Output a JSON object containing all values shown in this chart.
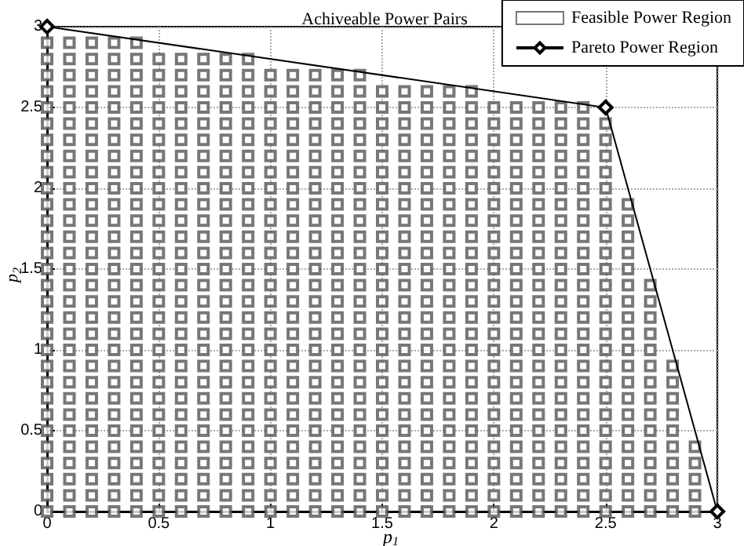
{
  "chart_data": {
    "type": "scatter",
    "title": "Achiveable Power Pairs",
    "xlabel": "p$_{1}$",
    "ylabel": "p$_{2}$",
    "xlim": [
      0,
      3
    ],
    "ylim": [
      0,
      3
    ],
    "xticks": [
      0,
      0.5,
      1,
      1.5,
      2,
      2.5,
      3
    ],
    "yticks": [
      0,
      0.5,
      1,
      1.5,
      2,
      2.5,
      3
    ],
    "grid": true,
    "legend": "top right",
    "series": [
      {
        "name": "Feasible Power Region",
        "marker": "square",
        "color": "#555555",
        "x": [
          0,
          0.1,
          0.2,
          0.3,
          0.4,
          0.5,
          0.6,
          0.7,
          0.8,
          0.9,
          1,
          1.1,
          1.2,
          1.3,
          1.4,
          1.5,
          1.6,
          1.7,
          1.8,
          1.9,
          2,
          2.1,
          2.2,
          2.3,
          2.4,
          2.5,
          2.6,
          2.7,
          2.8,
          2.9,
          0,
          0.1,
          0.2,
          0.3,
          0.4,
          0.5,
          0.6,
          0.7,
          0.8,
          0.9,
          1,
          1.1,
          1.2,
          1.3,
          1.4,
          1.5,
          1.6,
          1.7,
          1.8,
          1.9,
          2,
          2.1,
          2.2,
          2.3,
          2.4,
          2.5,
          2.6,
          2.7,
          2.8,
          2.9,
          0,
          0.1,
          0.2,
          0.3,
          0.4,
          0.5,
          0.6,
          0.7,
          0.8,
          0.9,
          1,
          1.1,
          1.2,
          1.3,
          1.4,
          1.5,
          1.6,
          1.7,
          1.8,
          1.9,
          2,
          2.1,
          2.2,
          2.3,
          2.4,
          2.5,
          2.6,
          2.7,
          2.8,
          2.9,
          0,
          0.1,
          0.2,
          0.3,
          0.4,
          0.5,
          0.6,
          0.7,
          0.8,
          0.9,
          1,
          1.1,
          1.2,
          1.3,
          1.4,
          1.5,
          1.6,
          1.7,
          1.8,
          1.9,
          2,
          2.1,
          2.2,
          2.3,
          2.4,
          2.5,
          2.6,
          2.7,
          2.8,
          2.9,
          0,
          0.1,
          0.2,
          0.3,
          0.4,
          0.5,
          0.6,
          0.7,
          0.8,
          0.9,
          1,
          1.1,
          1.2,
          1.3,
          1.4,
          1.5,
          1.6,
          1.7,
          1.8,
          1.9,
          2,
          2.1,
          2.2,
          2.3,
          2.4,
          2.5,
          2.6,
          2.7,
          2.8,
          2.9,
          0,
          0.1,
          0.2,
          0.3,
          0.4,
          0.5,
          0.6,
          0.7,
          0.8,
          0.9,
          1,
          1.1,
          1.2,
          1.3,
          1.4,
          1.5,
          1.6,
          1.7,
          1.8,
          1.9,
          2,
          2.1,
          2.2,
          2.3,
          2.4,
          2.5,
          2.6,
          2.7,
          2.8,
          0,
          0.1,
          0.2,
          0.3,
          0.4,
          0.5,
          0.6,
          0.7,
          0.8,
          0.9,
          1,
          1.1,
          1.2,
          1.3,
          1.4,
          1.5,
          1.6,
          1.7,
          1.8,
          1.9,
          2,
          2.1,
          2.2,
          2.3,
          2.4,
          2.5,
          2.6,
          2.7,
          2.8,
          0,
          0.1,
          0.2,
          0.3,
          0.4,
          0.5,
          0.6,
          0.7,
          0.8,
          0.9,
          1,
          1.1,
          1.2,
          1.3,
          1.4,
          1.5,
          1.6,
          1.7,
          1.8,
          1.9,
          2,
          2.1,
          2.2,
          2.3,
          2.4,
          2.5,
          2.6,
          2.7,
          2.8,
          0,
          0.1,
          0.2,
          0.3,
          0.4,
          0.5,
          0.6,
          0.7,
          0.8,
          0.9,
          1,
          1.1,
          1.2,
          1.3,
          1.4,
          1.5,
          1.6,
          1.7,
          1.8,
          1.9,
          2,
          2.1,
          2.2,
          2.3,
          2.4,
          2.5,
          2.6,
          2.7,
          2.8,
          0,
          0.1,
          0.2,
          0.3,
          0.4,
          0.5,
          0.6,
          0.7,
          0.8,
          0.9,
          1,
          1.1,
          1.2,
          1.3,
          1.4,
          1.5,
          1.6,
          1.7,
          1.8,
          1.9,
          2,
          2.1,
          2.2,
          2.3,
          2.4,
          2.5,
          2.6,
          2.7,
          2.8,
          0,
          0.1,
          0.2,
          0.3,
          0.4,
          0.5,
          0.6,
          0.7,
          0.8,
          0.9,
          1,
          1.1,
          1.2,
          1.3,
          1.4,
          1.5,
          1.6,
          1.7,
          1.8,
          1.9,
          2,
          2.1,
          2.2,
          2.3,
          2.4,
          2.5,
          2.6,
          2.7,
          0,
          0.1,
          0.2,
          0.3,
          0.4,
          0.5,
          0.6,
          0.7,
          0.8,
          0.9,
          1,
          1.1,
          1.2,
          1.3,
          1.4,
          1.5,
          1.6,
          1.7,
          1.8,
          1.9,
          2,
          2.1,
          2.2,
          2.3,
          2.4,
          2.5,
          2.6,
          2.7,
          0,
          0.1,
          0.2,
          0.3,
          0.4,
          0.5,
          0.6,
          0.7,
          0.8,
          0.9,
          1,
          1.1,
          1.2,
          1.3,
          1.4,
          1.5,
          1.6,
          1.7,
          1.8,
          1.9,
          2,
          2.1,
          2.2,
          2.3,
          2.4,
          2.5,
          2.6,
          2.7,
          0,
          0.1,
          0.2,
          0.3,
          0.4,
          0.5,
          0.6,
          0.7,
          0.8,
          0.9,
          1,
          1.1,
          1.2,
          1.3,
          1.4,
          1.5,
          1.6,
          1.7,
          1.8,
          1.9,
          2,
          2.1,
          2.2,
          2.3,
          2.4,
          2.5,
          2.6,
          2.7,
          0,
          0.1,
          0.2,
          0.3,
          0.4,
          0.5,
          0.6,
          0.7,
          0.8,
          0.9,
          1,
          1.1,
          1.2,
          1.3,
          1.4,
          1.5,
          1.6,
          1.7,
          1.8,
          1.9,
          2,
          2.1,
          2.2,
          2.3,
          2.4,
          2.5,
          2.6,
          2.7,
          0,
          0.1,
          0.2,
          0.3,
          0.4,
          0.5,
          0.6,
          0.7,
          0.8,
          0.9,
          1,
          1.1,
          1.2,
          1.3,
          1.4,
          1.5,
          1.6,
          1.7,
          1.8,
          1.9,
          2,
          2.1,
          2.2,
          2.3,
          2.4,
          2.5,
          2.6,
          0,
          0.1,
          0.2,
          0.3,
          0.4,
          0.5,
          0.6,
          0.7,
          0.8,
          0.9,
          1,
          1.1,
          1.2,
          1.3,
          1.4,
          1.5,
          1.6,
          1.7,
          1.8,
          1.9,
          2,
          2.1,
          2.2,
          2.3,
          2.4,
          2.5,
          2.6,
          0,
          0.1,
          0.2,
          0.3,
          0.4,
          0.5,
          0.6,
          0.7,
          0.8,
          0.9,
          1,
          1.1,
          1.2,
          1.3,
          1.4,
          1.5,
          1.6,
          1.7,
          1.8,
          1.9,
          2,
          2.1,
          2.2,
          2.3,
          2.4,
          2.5,
          2.6,
          0,
          0.1,
          0.2,
          0.3,
          0.4,
          0.5,
          0.6,
          0.7,
          0.8,
          0.9,
          1,
          1.1,
          1.2,
          1.3,
          1.4,
          1.5,
          1.6,
          1.7,
          1.8,
          1.9,
          2,
          2.1,
          2.2,
          2.3,
          2.4,
          2.5,
          2.6,
          0,
          0.1,
          0.2,
          0.3,
          0.4,
          0.5,
          0.6,
          0.7,
          0.8,
          0.9,
          1,
          1.1,
          1.2,
          1.3,
          1.4,
          1.5,
          1.6,
          1.7,
          1.8,
          1.9,
          2,
          2.1,
          2.2,
          2.3,
          2.4,
          2.5,
          2.6,
          0,
          0.1,
          0.2,
          0.3,
          0.4,
          0.5,
          0.6,
          0.7,
          0.8,
          0.9,
          1,
          1.1,
          1.2,
          1.3,
          1.4,
          1.5,
          1.6,
          1.7,
          1.8,
          1.9,
          2,
          2.1,
          2.2,
          2.3,
          2.4,
          2.5,
          0,
          0.1,
          0.2,
          0.3,
          0.4,
          0.5,
          0.6,
          0.7,
          0.8,
          0.9,
          1,
          1.1,
          1.2,
          1.3,
          1.4,
          1.5,
          1.6,
          1.7,
          1.8,
          1.9,
          2,
          2.1,
          2.2,
          2.3,
          2.4,
          2.5,
          0,
          0.1,
          0.2,
          0.3,
          0.4,
          0.5,
          0.6,
          0.7,
          0.8,
          0.9,
          1,
          1.1,
          1.2,
          1.3,
          1.4,
          1.5,
          1.6,
          1.7,
          1.8,
          1.9,
          2,
          2.1,
          2.2,
          2.3,
          2.4,
          2.5,
          0,
          0.1,
          0.2,
          0.3,
          0.4,
          0.5,
          0.6,
          0.7,
          0.8,
          0.9,
          1,
          1.1,
          1.2,
          1.3,
          1.4,
          1.5,
          1.6,
          1.7,
          1.8,
          1.9,
          2,
          2.1,
          2.2,
          2.3,
          2.4,
          2.5,
          0,
          0.1,
          0.2,
          0.3,
          0.4,
          0.5,
          0.6,
          0.7,
          0.8,
          0.9,
          1,
          1.1,
          1.2,
          1.3,
          1.4,
          1.5,
          1.6,
          1.7,
          1.8,
          1.9,
          2,
          2.1,
          2.2,
          2.3,
          2.4,
          2.5,
          0,
          0.1,
          0.2,
          0.3,
          0.4,
          0.5,
          0.6,
          0.7,
          0.8,
          0.9,
          1,
          1.1,
          1.2,
          1.3,
          1.4,
          1.5,
          1.6,
          1.7,
          1.8,
          1.9,
          2,
          2.1,
          2.2,
          2.3,
          2.4,
          0,
          0.1,
          0.2,
          0.3,
          0.4,
          0.5,
          0.6,
          0.7,
          0.8,
          0.9,
          1,
          1.1,
          1.2,
          1.3,
          1.4,
          1.5,
          1.6,
          1.7,
          1.8,
          1.9,
          0,
          0.1,
          0.2,
          0.3,
          0.4,
          0.5,
          0.6,
          0.7,
          0.8,
          0.9,
          1,
          1.1,
          1.2,
          1.3,
          1.4,
          0,
          0.1,
          0.2,
          0.3,
          0.4,
          0.5,
          0.6,
          0.7,
          0.8,
          0.9,
          0,
          0.1,
          0.2,
          0.3,
          0.4
        ],
        "values": [
          0,
          0,
          0,
          0,
          0,
          0,
          0,
          0,
          0,
          0,
          0,
          0,
          0,
          0,
          0,
          0,
          0,
          0,
          0,
          0,
          0,
          0,
          0,
          0,
          0,
          0,
          0,
          0,
          0,
          0,
          0.1,
          0.1,
          0.1,
          0.1,
          0.1,
          0.1,
          0.1,
          0.1,
          0.1,
          0.1,
          0.1,
          0.1,
          0.1,
          0.1,
          0.1,
          0.1,
          0.1,
          0.1,
          0.1,
          0.1,
          0.1,
          0.1,
          0.1,
          0.1,
          0.1,
          0.1,
          0.1,
          0.1,
          0.1,
          0.1,
          0.2,
          0.2,
          0.2,
          0.2,
          0.2,
          0.2,
          0.2,
          0.2,
          0.2,
          0.2,
          0.2,
          0.2,
          0.2,
          0.2,
          0.2,
          0.2,
          0.2,
          0.2,
          0.2,
          0.2,
          0.2,
          0.2,
          0.2,
          0.2,
          0.2,
          0.2,
          0.2,
          0.2,
          0.2,
          0.2,
          0.3,
          0.3,
          0.3,
          0.3,
          0.3,
          0.3,
          0.3,
          0.3,
          0.3,
          0.3,
          0.3,
          0.3,
          0.3,
          0.3,
          0.3,
          0.3,
          0.3,
          0.3,
          0.3,
          0.3,
          0.3,
          0.3,
          0.3,
          0.3,
          0.3,
          0.3,
          0.3,
          0.3,
          0.3,
          0.3,
          0.4,
          0.4,
          0.4,
          0.4,
          0.4,
          0.4,
          0.4,
          0.4,
          0.4,
          0.4,
          0.4,
          0.4,
          0.4,
          0.4,
          0.4,
          0.4,
          0.4,
          0.4,
          0.4,
          0.4,
          0.4,
          0.4,
          0.4,
          0.4,
          0.4,
          0.4,
          0.4,
          0.4,
          0.4,
          0.4,
          0.5,
          0.5,
          0.5,
          0.5,
          0.5,
          0.5,
          0.5,
          0.5,
          0.5,
          0.5,
          0.5,
          0.5,
          0.5,
          0.5,
          0.5,
          0.5,
          0.5,
          0.5,
          0.5,
          0.5,
          0.5,
          0.5,
          0.5,
          0.5,
          0.5,
          0.5,
          0.5,
          0.5,
          0.5,
          0.6,
          0.6,
          0.6,
          0.6,
          0.6,
          0.6,
          0.6,
          0.6,
          0.6,
          0.6,
          0.6,
          0.6,
          0.6,
          0.6,
          0.6,
          0.6,
          0.6,
          0.6,
          0.6,
          0.6,
          0.6,
          0.6,
          0.6,
          0.6,
          0.6,
          0.6,
          0.6,
          0.6,
          0.6,
          0.7,
          0.7,
          0.7,
          0.7,
          0.7,
          0.7,
          0.7,
          0.7,
          0.7,
          0.7,
          0.7,
          0.7,
          0.7,
          0.7,
          0.7,
          0.7,
          0.7,
          0.7,
          0.7,
          0.7,
          0.7,
          0.7,
          0.7,
          0.7,
          0.7,
          0.7,
          0.7,
          0.7,
          0.7,
          0.8,
          0.8,
          0.8,
          0.8,
          0.8,
          0.8,
          0.8,
          0.8,
          0.8,
          0.8,
          0.8,
          0.8,
          0.8,
          0.8,
          0.8,
          0.8,
          0.8,
          0.8,
          0.8,
          0.8,
          0.8,
          0.8,
          0.8,
          0.8,
          0.8,
          0.8,
          0.8,
          0.8,
          0.8,
          0.9,
          0.9,
          0.9,
          0.9,
          0.9,
          0.9,
          0.9,
          0.9,
          0.9,
          0.9,
          0.9,
          0.9,
          0.9,
          0.9,
          0.9,
          0.9,
          0.9,
          0.9,
          0.9,
          0.9,
          0.9,
          0.9,
          0.9,
          0.9,
          0.9,
          0.9,
          0.9,
          0.9,
          0.9,
          1,
          1,
          1,
          1,
          1,
          1,
          1,
          1,
          1,
          1,
          1,
          1,
          1,
          1,
          1,
          1,
          1,
          1,
          1,
          1,
          1,
          1,
          1,
          1,
          1,
          1,
          1,
          1,
          1.1,
          1.1,
          1.1,
          1.1,
          1.1,
          1.1,
          1.1,
          1.1,
          1.1,
          1.1,
          1.1,
          1.1,
          1.1,
          1.1,
          1.1,
          1.1,
          1.1,
          1.1,
          1.1,
          1.1,
          1.1,
          1.1,
          1.1,
          1.1,
          1.1,
          1.1,
          1.1,
          1.1,
          1.2,
          1.2,
          1.2,
          1.2,
          1.2,
          1.2,
          1.2,
          1.2,
          1.2,
          1.2,
          1.2,
          1.2,
          1.2,
          1.2,
          1.2,
          1.2,
          1.2,
          1.2,
          1.2,
          1.2,
          1.2,
          1.2,
          1.2,
          1.2,
          1.2,
          1.2,
          1.2,
          1.2,
          1.3,
          1.3,
          1.3,
          1.3,
          1.3,
          1.3,
          1.3,
          1.3,
          1.3,
          1.3,
          1.3,
          1.3,
          1.3,
          1.3,
          1.3,
          1.3,
          1.3,
          1.3,
          1.3,
          1.3,
          1.3,
          1.3,
          1.3,
          1.3,
          1.3,
          1.3,
          1.3,
          1.3,
          1.4,
          1.4,
          1.4,
          1.4,
          1.4,
          1.4,
          1.4,
          1.4,
          1.4,
          1.4,
          1.4,
          1.4,
          1.4,
          1.4,
          1.4,
          1.4,
          1.4,
          1.4,
          1.4,
          1.4,
          1.4,
          1.4,
          1.4,
          1.4,
          1.4,
          1.4,
          1.4,
          1.4,
          1.5,
          1.5,
          1.5,
          1.5,
          1.5,
          1.5,
          1.5,
          1.5,
          1.5,
          1.5,
          1.5,
          1.5,
          1.5,
          1.5,
          1.5,
          1.5,
          1.5,
          1.5,
          1.5,
          1.5,
          1.5,
          1.5,
          1.5,
          1.5,
          1.5,
          1.5,
          1.5,
          1.6,
          1.6,
          1.6,
          1.6,
          1.6,
          1.6,
          1.6,
          1.6,
          1.6,
          1.6,
          1.6,
          1.6,
          1.6,
          1.6,
          1.6,
          1.6,
          1.6,
          1.6,
          1.6,
          1.6,
          1.6,
          1.6,
          1.6,
          1.6,
          1.6,
          1.6,
          1.6,
          1.7,
          1.7,
          1.7,
          1.7,
          1.7,
          1.7,
          1.7,
          1.7,
          1.7,
          1.7,
          1.7,
          1.7,
          1.7,
          1.7,
          1.7,
          1.7,
          1.7,
          1.7,
          1.7,
          1.7,
          1.7,
          1.7,
          1.7,
          1.7,
          1.7,
          1.7,
          1.7,
          1.8,
          1.8,
          1.8,
          1.8,
          1.8,
          1.8,
          1.8,
          1.8,
          1.8,
          1.8,
          1.8,
          1.8,
          1.8,
          1.8,
          1.8,
          1.8,
          1.8,
          1.8,
          1.8,
          1.8,
          1.8,
          1.8,
          1.8,
          1.8,
          1.8,
          1.8,
          1.8,
          1.9,
          1.9,
          1.9,
          1.9,
          1.9,
          1.9,
          1.9,
          1.9,
          1.9,
          1.9,
          1.9,
          1.9,
          1.9,
          1.9,
          1.9,
          1.9,
          1.9,
          1.9,
          1.9,
          1.9,
          1.9,
          1.9,
          1.9,
          1.9,
          1.9,
          1.9,
          1.9,
          2,
          2,
          2,
          2,
          2,
          2,
          2,
          2,
          2,
          2,
          2,
          2,
          2,
          2,
          2,
          2,
          2,
          2,
          2,
          2,
          2,
          2,
          2,
          2,
          2,
          2,
          2.1,
          2.1,
          2.1,
          2.1,
          2.1,
          2.1,
          2.1,
          2.1,
          2.1,
          2.1,
          2.1,
          2.1,
          2.1,
          2.1,
          2.1,
          2.1,
          2.1,
          2.1,
          2.1,
          2.1,
          2.1,
          2.1,
          2.1,
          2.1,
          2.1,
          2.1,
          2.2,
          2.2,
          2.2,
          2.2,
          2.2,
          2.2,
          2.2,
          2.2,
          2.2,
          2.2,
          2.2,
          2.2,
          2.2,
          2.2,
          2.2,
          2.2,
          2.2,
          2.2,
          2.2,
          2.2,
          2.2,
          2.2,
          2.2,
          2.2,
          2.2,
          2.2,
          2.3,
          2.3,
          2.3,
          2.3,
          2.3,
          2.3,
          2.3,
          2.3,
          2.3,
          2.3,
          2.3,
          2.3,
          2.3,
          2.3,
          2.3,
          2.3,
          2.3,
          2.3,
          2.3,
          2.3,
          2.3,
          2.3,
          2.3,
          2.3,
          2.3,
          2.3,
          2.4,
          2.4,
          2.4,
          2.4,
          2.4,
          2.4,
          2.4,
          2.4,
          2.4,
          2.4,
          2.4,
          2.4,
          2.4,
          2.4,
          2.4,
          2.4,
          2.4,
          2.4,
          2.4,
          2.4,
          2.4,
          2.4,
          2.4,
          2.4,
          2.4,
          2.4,
          2.5,
          2.5,
          2.5,
          2.5,
          2.5,
          2.5,
          2.5,
          2.5,
          2.5,
          2.5,
          2.5,
          2.5,
          2.5,
          2.5,
          2.5,
          2.5,
          2.5,
          2.5,
          2.5,
          2.5,
          2.5,
          2.5,
          2.5,
          2.5,
          2.5,
          2.6,
          2.6,
          2.6,
          2.6,
          2.6,
          2.6,
          2.6,
          2.6,
          2.6,
          2.6,
          2.6,
          2.6,
          2.6,
          2.6,
          2.6,
          2.6,
          2.6,
          2.6,
          2.6,
          2.6,
          2.7,
          2.7,
          2.7,
          2.7,
          2.7,
          2.7,
          2.7,
          2.7,
          2.7,
          2.7,
          2.7,
          2.7,
          2.7,
          2.7,
          2.7,
          2.8,
          2.8,
          2.8,
          2.8,
          2.8,
          2.8,
          2.8,
          2.8,
          2.8,
          2.8,
          2.9,
          2.9,
          2.9,
          2.9,
          2.9
        ]
      },
      {
        "name": "Pareto Power Region",
        "type": "line",
        "marker": "diamond",
        "line_style": "solid",
        "color": "#000000",
        "x": [
          0,
          2.5,
          3
        ],
        "values": [
          3,
          2.5,
          0
        ]
      }
    ]
  }
}
